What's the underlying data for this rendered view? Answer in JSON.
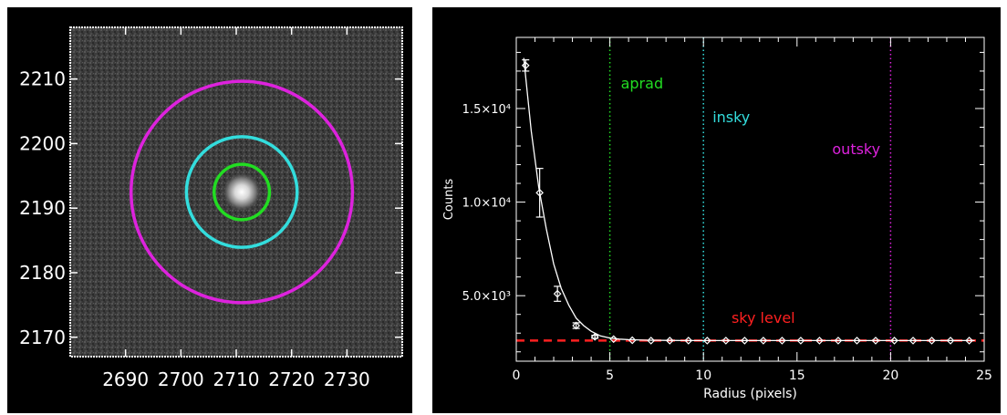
{
  "chart_data": [
    {
      "type": "image",
      "xlim": [
        2680,
        2740
      ],
      "ylim": [
        2167,
        2218
      ],
      "xticks": [
        "2690",
        "2700",
        "2710",
        "2720",
        "2730"
      ],
      "yticks": [
        "2210",
        "2200",
        "2190",
        "2180",
        "2170"
      ],
      "xtick_values": [
        2690,
        2700,
        2710,
        2720,
        2730
      ],
      "ytick_values": [
        2210,
        2200,
        2190,
        2180,
        2170
      ],
      "star_center": [
        2711,
        2192.5
      ],
      "apertures": [
        {
          "name": "aprad",
          "radius": 5,
          "color": "#22dd22"
        },
        {
          "name": "insky",
          "radius": 10,
          "color": "#33dddd"
        },
        {
          "name": "outsky",
          "radius": 20,
          "color": "#dd22dd"
        }
      ]
    },
    {
      "type": "scatter",
      "xlabel": "Radius (pixels)",
      "ylabel": "Counts",
      "xlim": [
        0,
        25
      ],
      "ylim": [
        1500,
        18800
      ],
      "xticks": [
        "0",
        "5",
        "10",
        "15",
        "20",
        "25"
      ],
      "xtick_values": [
        0,
        5,
        10,
        15,
        20,
        25
      ],
      "yticks": [
        "5.0×10³",
        "1.0×10⁴",
        "1.5×10⁴"
      ],
      "ytick_values": [
        5000,
        10000,
        15000
      ],
      "series": [
        {
          "type": "points",
          "x": [
            0.5,
            1.25,
            2.2,
            3.2,
            4.2,
            5.2,
            6.2,
            7.2,
            8.2,
            9.2,
            10.2,
            11.2,
            12.2,
            13.2,
            14.2,
            15.2,
            16.2,
            17.2,
            18.2,
            19.2,
            20.2,
            21.2,
            22.2,
            23.2,
            24.2
          ],
          "y": [
            17300,
            10500,
            5100,
            3400,
            2800,
            2680,
            2620,
            2600,
            2600,
            2600,
            2600,
            2600,
            2600,
            2600,
            2600,
            2600,
            2600,
            2600,
            2600,
            2600,
            2600,
            2600,
            2600,
            2600,
            2600
          ],
          "err": [
            300,
            1300,
            400,
            150,
            80,
            0,
            0,
            0,
            0,
            0,
            0,
            0,
            0,
            0,
            0,
            0,
            0,
            0,
            0,
            0,
            0,
            0,
            0,
            0,
            0
          ]
        },
        {
          "type": "fit-curve",
          "x": [
            0.4,
            0.8,
            1.2,
            1.6,
            2.0,
            2.4,
            2.8,
            3.2,
            3.6,
            4.0,
            4.5,
            5.0,
            5.5,
            6.0,
            7.0,
            8.0,
            9.0,
            10.0,
            12.0,
            15.0,
            20.0,
            24.5
          ],
          "y": [
            17700,
            13800,
            10800,
            8600,
            6700,
            5400,
            4500,
            3800,
            3400,
            3100,
            2850,
            2740,
            2680,
            2650,
            2620,
            2610,
            2600,
            2600,
            2600,
            2600,
            2600,
            2600
          ]
        }
      ],
      "sky_level": {
        "y": 2600,
        "label": "sky level",
        "color": "#ff2020"
      },
      "vlines": [
        {
          "x": 5,
          "label": "aprad",
          "color": "#22dd22"
        },
        {
          "x": 10,
          "label": "insky",
          "color": "#33dddd"
        },
        {
          "x": 20,
          "label": "outsky",
          "color": "#dd22dd"
        }
      ]
    }
  ]
}
